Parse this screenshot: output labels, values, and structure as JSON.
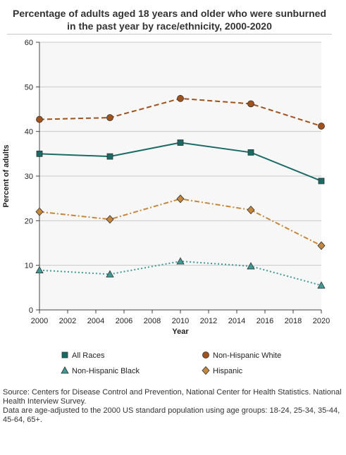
{
  "chart_data": {
    "type": "line",
    "title": "Percentage of adults aged 18 years and older who were sunburned in the past year by race/ethnicity, 2000-2020",
    "xlabel": "Year",
    "ylabel": "Percent of adults",
    "x": [
      2000,
      2005,
      2010,
      2015,
      2020
    ],
    "xlim": [
      2000,
      2020
    ],
    "ylim": [
      0,
      60
    ],
    "xticks": [
      "2000",
      "2002",
      "2004",
      "2006",
      "2008",
      "2010",
      "2012",
      "2014",
      "2016",
      "2018",
      "2020"
    ],
    "yticks": [
      "0",
      "10",
      "20",
      "30",
      "40",
      "50",
      "60"
    ],
    "grid": "horizontal",
    "legend_position": "bottom",
    "series": [
      {
        "name": "All Races",
        "values": [
          35.0,
          34.4,
          37.5,
          35.3,
          28.9
        ],
        "color": "#1a6b66",
        "marker": "square",
        "dash": "solid"
      },
      {
        "name": "Non-Hispanic White",
        "values": [
          42.7,
          43.1,
          47.4,
          46.2,
          41.2
        ],
        "color": "#a0521d",
        "marker": "circle",
        "dash": "dashed"
      },
      {
        "name": "Non-Hispanic Black",
        "values": [
          8.9,
          8.0,
          10.9,
          9.8,
          5.5
        ],
        "color": "#3f9a94",
        "marker": "triangle",
        "dash": "dotted"
      },
      {
        "name": "Hispanic",
        "values": [
          22.0,
          20.3,
          24.9,
          22.4,
          14.4
        ],
        "color": "#c5873c",
        "marker": "diamond",
        "dash": "dashdot"
      }
    ]
  },
  "footer": {
    "source": "Source: Centers for Disease Control and Prevention, National Center for Health Statistics. National Health Interview Survey.",
    "note": "Data are age-adjusted to the 2000 US standard population using age groups: 18-24, 25-34, 35-44, 45-64, 65+."
  }
}
